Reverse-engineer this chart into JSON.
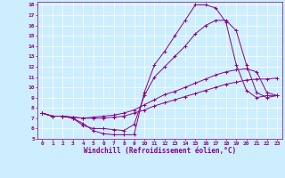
{
  "title": "",
  "xlabel": "Windchill (Refroidissement éolien,°C)",
  "ylabel": "",
  "bg_color": "#cceeff",
  "line_color": "#880088",
  "xlim": [
    -0.5,
    23.5
  ],
  "ylim": [
    5,
    18.3
  ],
  "xticks": [
    0,
    1,
    2,
    3,
    4,
    5,
    6,
    7,
    8,
    9,
    10,
    11,
    12,
    13,
    14,
    15,
    16,
    17,
    18,
    19,
    20,
    21,
    22,
    23
  ],
  "yticks": [
    5,
    6,
    7,
    8,
    9,
    10,
    11,
    12,
    13,
    14,
    15,
    16,
    17,
    18
  ],
  "lines": [
    {
      "x": [
        0,
        1,
        2,
        3,
        4,
        5,
        6,
        7,
        8,
        9,
        10,
        11,
        12,
        13,
        14,
        15,
        16,
        17,
        18,
        19,
        20,
        21,
        22,
        23
      ],
      "y": [
        7.5,
        7.2,
        7.2,
        7.0,
        6.5,
        5.8,
        5.5,
        5.4,
        5.4,
        5.4,
        9.5,
        12.2,
        13.5,
        15.0,
        16.5,
        18.0,
        18.0,
        17.7,
        16.3,
        12.2,
        9.7,
        9.0,
        9.2,
        9.2
      ]
    },
    {
      "x": [
        0,
        1,
        2,
        3,
        4,
        5,
        6,
        7,
        8,
        9,
        10,
        11,
        12,
        13,
        14,
        15,
        16,
        17,
        18,
        19,
        20,
        21,
        22,
        23
      ],
      "y": [
        7.5,
        7.2,
        7.2,
        7.0,
        6.3,
        6.0,
        6.0,
        5.9,
        5.8,
        6.4,
        9.2,
        11.0,
        12.0,
        13.0,
        14.0,
        15.2,
        16.0,
        16.5,
        16.5,
        15.5,
        12.2,
        9.5,
        9.0,
        9.2
      ]
    },
    {
      "x": [
        0,
        1,
        2,
        3,
        4,
        5,
        6,
        7,
        8,
        9,
        10,
        11,
        12,
        13,
        14,
        15,
        16,
        17,
        18,
        19,
        20,
        21,
        22,
        23
      ],
      "y": [
        7.5,
        7.2,
        7.2,
        7.1,
        7.0,
        7.1,
        7.2,
        7.3,
        7.5,
        7.8,
        8.3,
        8.8,
        9.3,
        9.6,
        10.0,
        10.4,
        10.8,
        11.2,
        11.5,
        11.7,
        11.8,
        11.5,
        9.5,
        9.2
      ]
    },
    {
      "x": [
        0,
        1,
        2,
        3,
        4,
        5,
        6,
        7,
        8,
        9,
        10,
        11,
        12,
        13,
        14,
        15,
        16,
        17,
        18,
        19,
        20,
        21,
        22,
        23
      ],
      "y": [
        7.5,
        7.2,
        7.2,
        7.1,
        7.0,
        7.0,
        7.0,
        7.1,
        7.2,
        7.5,
        7.8,
        8.2,
        8.5,
        8.8,
        9.1,
        9.4,
        9.7,
        10.0,
        10.3,
        10.5,
        10.7,
        10.8,
        10.8,
        10.9
      ]
    }
  ]
}
